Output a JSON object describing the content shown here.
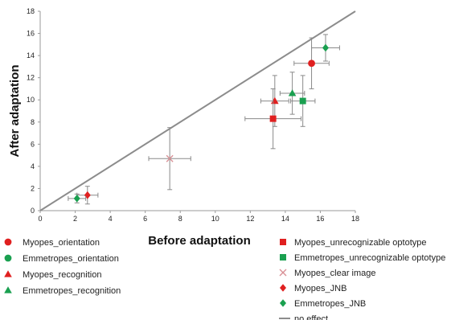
{
  "chart_data": {
    "type": "scatter",
    "xlabel": "Before adaptation",
    "ylabel": "After adaptation",
    "xlim": [
      0,
      18
    ],
    "ylim": [
      0,
      18
    ],
    "x_ticks": [
      0,
      2,
      4,
      6,
      8,
      10,
      12,
      14,
      16,
      18
    ],
    "y_ticks": [
      0,
      2,
      4,
      6,
      8,
      10,
      12,
      14,
      16,
      18
    ],
    "grid": false,
    "reference_line": {
      "name": "no effect",
      "from": [
        0,
        0
      ],
      "to": [
        18,
        18
      ],
      "color": "#8c8c8c"
    },
    "series": [
      {
        "name": "Myopes_orientation",
        "marker": "circle",
        "color": "#e02020",
        "points": [
          {
            "x": 15.5,
            "y": 13.3,
            "xerr": 1.0,
            "yerr": 2.3
          }
        ]
      },
      {
        "name": "Emmetropes_orientation",
        "marker": "circle",
        "color": "#1aa050",
        "points": []
      },
      {
        "name": "Myopes_recognition",
        "marker": "triangle",
        "color": "#e02020",
        "points": [
          {
            "x": 13.4,
            "y": 9.9,
            "xerr": 0.8,
            "yerr": 2.3
          }
        ]
      },
      {
        "name": "Emmetropes_recognition",
        "marker": "triangle",
        "color": "#1aa050",
        "points": [
          {
            "x": 14.4,
            "y": 10.6,
            "xerr": 0.7,
            "yerr": 1.9
          }
        ]
      },
      {
        "name": "Myopes_unrecognizable optotype",
        "marker": "square",
        "color": "#e02020",
        "points": [
          {
            "x": 13.3,
            "y": 8.3,
            "xerr": 1.6,
            "yerr": 2.7
          }
        ]
      },
      {
        "name": "Emmetropes_unrecognizable optotype",
        "marker": "square",
        "color": "#1aa050",
        "points": [
          {
            "x": 15.0,
            "y": 9.9,
            "xerr": 0.7,
            "yerr": 2.3
          }
        ]
      },
      {
        "name": "Myopes_clear image",
        "marker": "x",
        "color": "#d88f94",
        "points": [
          {
            "x": 7.4,
            "y": 4.7,
            "xerr": 1.2,
            "yerr": 2.8
          }
        ]
      },
      {
        "name": "Myopes_JNB",
        "marker": "diamond",
        "color": "#e02020",
        "points": [
          {
            "x": 2.7,
            "y": 1.4,
            "xerr": 0.6,
            "yerr": 0.8
          }
        ]
      },
      {
        "name": "Emmetropes_JNB",
        "marker": "diamond",
        "color": "#1aa050",
        "points": [
          {
            "x": 2.1,
            "y": 1.1,
            "xerr": 0.5,
            "yerr": 0.4
          },
          {
            "x": 16.3,
            "y": 14.7,
            "xerr": 0.8,
            "yerr": 1.2
          }
        ]
      }
    ]
  }
}
